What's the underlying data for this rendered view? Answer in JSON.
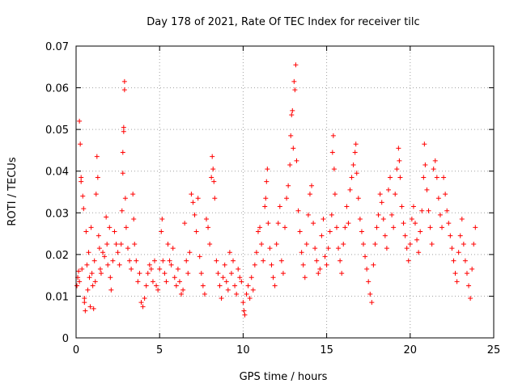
{
  "chart_data": {
    "type": "scatter",
    "title": "Day 178 of 2021, Rate Of TEC Index for receiver tilc",
    "xlabel": "GPS time / hours",
    "ylabel": "ROTI / TECUs",
    "xlim": [
      0,
      25
    ],
    "ylim": [
      0,
      0.07
    ],
    "x_ticks": [
      "0",
      "5",
      "10",
      "15",
      "20",
      "25"
    ],
    "y_ticks": [
      "0",
      "0.01",
      "0.02",
      "0.03",
      "0.04",
      "0.05",
      "0.06",
      "0.07"
    ],
    "grid": true,
    "marker": "+",
    "color": "#ff0000",
    "series": [
      {
        "name": "ROTI",
        "points": [
          [
            0.05,
            0.0125
          ],
          [
            0.1,
            0.0145
          ],
          [
            0.15,
            0.016
          ],
          [
            0.2,
            0.0135
          ],
          [
            0.2,
            0.052
          ],
          [
            0.25,
            0.0465
          ],
          [
            0.3,
            0.0385
          ],
          [
            0.3,
            0.0375
          ],
          [
            0.35,
            0.0165
          ],
          [
            0.4,
            0.034
          ],
          [
            0.45,
            0.031
          ],
          [
            0.5,
            0.0085
          ],
          [
            0.5,
            0.0095
          ],
          [
            0.55,
            0.0065
          ],
          [
            0.6,
            0.0255
          ],
          [
            0.65,
            0.0175
          ],
          [
            0.7,
            0.0115
          ],
          [
            0.75,
            0.0205
          ],
          [
            0.8,
            0.0145
          ],
          [
            0.85,
            0.0075
          ],
          [
            0.9,
            0.0265
          ],
          [
            0.95,
            0.0155
          ],
          [
            1.0,
            0.0125
          ],
          [
            1.05,
            0.007
          ],
          [
            1.1,
            0.0185
          ],
          [
            1.15,
            0.0135
          ],
          [
            1.2,
            0.0345
          ],
          [
            1.25,
            0.0435
          ],
          [
            1.3,
            0.0385
          ],
          [
            1.35,
            0.0245
          ],
          [
            1.4,
            0.0215
          ],
          [
            1.45,
            0.0165
          ],
          [
            1.5,
            0.0155
          ],
          [
            1.6,
            0.0205
          ],
          [
            1.7,
            0.0195
          ],
          [
            1.8,
            0.029
          ],
          [
            1.85,
            0.0225
          ],
          [
            1.9,
            0.0175
          ],
          [
            2.0,
            0.0265
          ],
          [
            2.05,
            0.0145
          ],
          [
            2.1,
            0.0115
          ],
          [
            2.2,
            0.0185
          ],
          [
            2.3,
            0.0255
          ],
          [
            2.4,
            0.0225
          ],
          [
            2.5,
            0.0205
          ],
          [
            2.6,
            0.0175
          ],
          [
            2.7,
            0.0225
          ],
          [
            2.75,
            0.0305
          ],
          [
            2.8,
            0.0395
          ],
          [
            2.8,
            0.0445
          ],
          [
            2.85,
            0.0495
          ],
          [
            2.85,
            0.0505
          ],
          [
            2.9,
            0.0595
          ],
          [
            2.9,
            0.0615
          ],
          [
            2.95,
            0.0335
          ],
          [
            3.0,
            0.0265
          ],
          [
            3.1,
            0.0215
          ],
          [
            3.2,
            0.0185
          ],
          [
            3.3,
            0.0165
          ],
          [
            3.4,
            0.0345
          ],
          [
            3.45,
            0.0285
          ],
          [
            3.5,
            0.0225
          ],
          [
            3.6,
            0.0185
          ],
          [
            3.7,
            0.0135
          ],
          [
            3.8,
            0.0155
          ],
          [
            3.9,
            0.0085
          ],
          [
            4.0,
            0.0075
          ],
          [
            4.1,
            0.0095
          ],
          [
            4.2,
            0.0125
          ],
          [
            4.3,
            0.0155
          ],
          [
            4.4,
            0.0175
          ],
          [
            4.5,
            0.0165
          ],
          [
            4.6,
            0.0135
          ],
          [
            4.7,
            0.0185
          ],
          [
            4.8,
            0.0125
          ],
          [
            4.9,
            0.0115
          ],
          [
            5.0,
            0.0165
          ],
          [
            5.1,
            0.0255
          ],
          [
            5.15,
            0.0285
          ],
          [
            5.2,
            0.0185
          ],
          [
            5.3,
            0.0155
          ],
          [
            5.4,
            0.0135
          ],
          [
            5.5,
            0.0225
          ],
          [
            5.6,
            0.0185
          ],
          [
            5.7,
            0.0175
          ],
          [
            5.8,
            0.0215
          ],
          [
            5.9,
            0.0145
          ],
          [
            6.0,
            0.0125
          ],
          [
            6.1,
            0.0165
          ],
          [
            6.2,
            0.0135
          ],
          [
            6.3,
            0.0105
          ],
          [
            6.4,
            0.0115
          ],
          [
            6.5,
            0.0275
          ],
          [
            6.6,
            0.0185
          ],
          [
            6.7,
            0.0155
          ],
          [
            6.8,
            0.0205
          ],
          [
            6.9,
            0.0345
          ],
          [
            7.0,
            0.0325
          ],
          [
            7.1,
            0.0295
          ],
          [
            7.2,
            0.0255
          ],
          [
            7.3,
            0.0335
          ],
          [
            7.4,
            0.0195
          ],
          [
            7.5,
            0.0155
          ],
          [
            7.6,
            0.0125
          ],
          [
            7.7,
            0.0105
          ],
          [
            7.8,
            0.0285
          ],
          [
            7.9,
            0.0265
          ],
          [
            8.0,
            0.0225
          ],
          [
            8.1,
            0.0385
          ],
          [
            8.15,
            0.0435
          ],
          [
            8.2,
            0.0405
          ],
          [
            8.25,
            0.0375
          ],
          [
            8.3,
            0.0335
          ],
          [
            8.4,
            0.0185
          ],
          [
            8.5,
            0.0155
          ],
          [
            8.6,
            0.0125
          ],
          [
            8.7,
            0.0095
          ],
          [
            8.8,
            0.0145
          ],
          [
            8.9,
            0.0175
          ],
          [
            9.0,
            0.0135
          ],
          [
            9.1,
            0.0115
          ],
          [
            9.2,
            0.0205
          ],
          [
            9.3,
            0.0155
          ],
          [
            9.4,
            0.0185
          ],
          [
            9.5,
            0.0125
          ],
          [
            9.6,
            0.0105
          ],
          [
            9.7,
            0.0165
          ],
          [
            9.8,
            0.0145
          ],
          [
            9.9,
            0.0135
          ],
          [
            10.0,
            0.0085
          ],
          [
            10.05,
            0.0065
          ],
          [
            10.1,
            0.0055
          ],
          [
            10.2,
            0.0105
          ],
          [
            10.3,
            0.0125
          ],
          [
            10.4,
            0.0095
          ],
          [
            10.5,
            0.0145
          ],
          [
            10.6,
            0.0115
          ],
          [
            10.7,
            0.0175
          ],
          [
            10.8,
            0.0205
          ],
          [
            10.9,
            0.0255
          ],
          [
            11.0,
            0.0265
          ],
          [
            11.1,
            0.0225
          ],
          [
            11.2,
            0.0185
          ],
          [
            11.3,
            0.0315
          ],
          [
            11.35,
            0.0335
          ],
          [
            11.4,
            0.0375
          ],
          [
            11.45,
            0.0405
          ],
          [
            11.5,
            0.0275
          ],
          [
            11.6,
            0.0215
          ],
          [
            11.7,
            0.0175
          ],
          [
            11.8,
            0.0145
          ],
          [
            11.9,
            0.0125
          ],
          [
            12.0,
            0.0225
          ],
          [
            12.1,
            0.0275
          ],
          [
            12.2,
            0.0315
          ],
          [
            12.3,
            0.0185
          ],
          [
            12.4,
            0.0155
          ],
          [
            12.5,
            0.0265
          ],
          [
            12.6,
            0.0335
          ],
          [
            12.7,
            0.0365
          ],
          [
            12.8,
            0.0415
          ],
          [
            12.85,
            0.0485
          ],
          [
            12.9,
            0.0535
          ],
          [
            12.95,
            0.0545
          ],
          [
            13.0,
            0.0455
          ],
          [
            13.05,
            0.0615
          ],
          [
            13.1,
            0.0595
          ],
          [
            13.15,
            0.0655
          ],
          [
            13.2,
            0.0425
          ],
          [
            13.3,
            0.0305
          ],
          [
            13.4,
            0.0255
          ],
          [
            13.5,
            0.0205
          ],
          [
            13.6,
            0.0175
          ],
          [
            13.7,
            0.0145
          ],
          [
            13.8,
            0.0225
          ],
          [
            13.9,
            0.0295
          ],
          [
            14.0,
            0.0345
          ],
          [
            14.1,
            0.0365
          ],
          [
            14.2,
            0.0275
          ],
          [
            14.3,
            0.0215
          ],
          [
            14.4,
            0.0185
          ],
          [
            14.5,
            0.0155
          ],
          [
            14.6,
            0.0165
          ],
          [
            14.7,
            0.0245
          ],
          [
            14.8,
            0.0285
          ],
          [
            14.9,
            0.0195
          ],
          [
            15.0,
            0.0175
          ],
          [
            15.1,
            0.0215
          ],
          [
            15.2,
            0.0255
          ],
          [
            15.3,
            0.0295
          ],
          [
            15.35,
            0.0445
          ],
          [
            15.4,
            0.0485
          ],
          [
            15.45,
            0.0405
          ],
          [
            15.5,
            0.0345
          ],
          [
            15.6,
            0.0265
          ],
          [
            15.7,
            0.0215
          ],
          [
            15.8,
            0.0185
          ],
          [
            15.9,
            0.0155
          ],
          [
            16.0,
            0.0225
          ],
          [
            16.1,
            0.0265
          ],
          [
            16.2,
            0.0315
          ],
          [
            16.3,
            0.0275
          ],
          [
            16.4,
            0.0355
          ],
          [
            16.5,
            0.0385
          ],
          [
            16.6,
            0.0415
          ],
          [
            16.7,
            0.0445
          ],
          [
            16.75,
            0.0465
          ],
          [
            16.8,
            0.0395
          ],
          [
            16.9,
            0.0335
          ],
          [
            17.0,
            0.0285
          ],
          [
            17.1,
            0.0255
          ],
          [
            17.2,
            0.0225
          ],
          [
            17.3,
            0.0195
          ],
          [
            17.4,
            0.0165
          ],
          [
            17.5,
            0.0135
          ],
          [
            17.6,
            0.0105
          ],
          [
            17.7,
            0.0085
          ],
          [
            17.8,
            0.0175
          ],
          [
            17.9,
            0.0225
          ],
          [
            18.0,
            0.0265
          ],
          [
            18.1,
            0.0295
          ],
          [
            18.2,
            0.0345
          ],
          [
            18.3,
            0.0325
          ],
          [
            18.4,
            0.0285
          ],
          [
            18.5,
            0.0245
          ],
          [
            18.6,
            0.0215
          ],
          [
            18.7,
            0.0355
          ],
          [
            18.8,
            0.0385
          ],
          [
            18.9,
            0.0295
          ],
          [
            19.0,
            0.0265
          ],
          [
            19.1,
            0.0345
          ],
          [
            19.2,
            0.0405
          ],
          [
            19.3,
            0.0455
          ],
          [
            19.35,
            0.0425
          ],
          [
            19.4,
            0.0385
          ],
          [
            19.5,
            0.0315
          ],
          [
            19.6,
            0.0275
          ],
          [
            19.7,
            0.0245
          ],
          [
            19.8,
            0.0215
          ],
          [
            19.9,
            0.0185
          ],
          [
            20.0,
            0.0225
          ],
          [
            20.1,
            0.0285
          ],
          [
            20.2,
            0.0315
          ],
          [
            20.3,
            0.0275
          ],
          [
            20.4,
            0.0235
          ],
          [
            20.5,
            0.0205
          ],
          [
            20.6,
            0.0255
          ],
          [
            20.7,
            0.0305
          ],
          [
            20.8,
            0.0385
          ],
          [
            20.85,
            0.0465
          ],
          [
            20.9,
            0.0415
          ],
          [
            21.0,
            0.0355
          ],
          [
            21.1,
            0.0305
          ],
          [
            21.2,
            0.0265
          ],
          [
            21.3,
            0.0225
          ],
          [
            21.4,
            0.0405
          ],
          [
            21.5,
            0.0425
          ],
          [
            21.6,
            0.0385
          ],
          [
            21.7,
            0.0335
          ],
          [
            21.8,
            0.0295
          ],
          [
            21.9,
            0.0265
          ],
          [
            22.0,
            0.0385
          ],
          [
            22.1,
            0.0345
          ],
          [
            22.2,
            0.0305
          ],
          [
            22.3,
            0.0275
          ],
          [
            22.4,
            0.0245
          ],
          [
            22.5,
            0.0215
          ],
          [
            22.6,
            0.0185
          ],
          [
            22.7,
            0.0155
          ],
          [
            22.8,
            0.0135
          ],
          [
            22.9,
            0.0205
          ],
          [
            23.0,
            0.0245
          ],
          [
            23.1,
            0.0285
          ],
          [
            23.2,
            0.0225
          ],
          [
            23.3,
            0.0185
          ],
          [
            23.4,
            0.0155
          ],
          [
            23.5,
            0.0125
          ],
          [
            23.6,
            0.0095
          ],
          [
            23.7,
            0.0165
          ],
          [
            23.8,
            0.0225
          ],
          [
            23.9,
            0.0265
          ]
        ]
      }
    ]
  }
}
